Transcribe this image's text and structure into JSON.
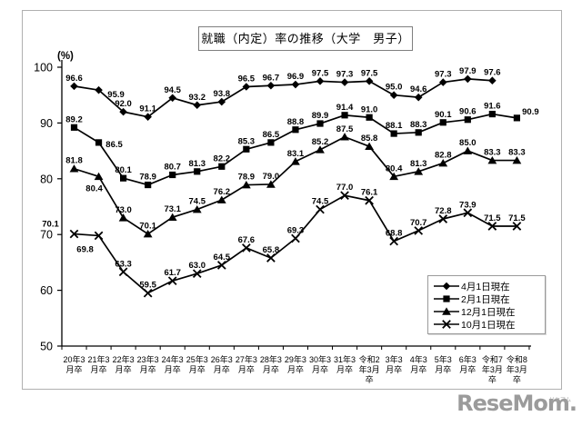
{
  "chart_data": {
    "type": "line",
    "title": "就職（内定）率の推移（大学　男子）",
    "y_unit": "(%)",
    "xlabel": "",
    "ylabel": "(%)",
    "ylim": [
      50,
      100
    ],
    "y_ticks": [
      100,
      90,
      80,
      70,
      60,
      50
    ],
    "grid": false,
    "legend_position": "inside-lower-right",
    "categories": [
      "20年3月卒",
      "21年3月卒",
      "22年3月卒",
      "23年3月卒",
      "24年3月卒",
      "25年3月卒",
      "26年3月卒",
      "27年3月卒",
      "28年3月卒",
      "29年3月卒",
      "30年3月卒",
      "31年3月卒",
      "令和2年3月卒",
      "3年3月卒",
      "4年3月卒",
      "5年3月卒",
      "6年3月卒",
      "令和7年3月卒",
      "令和8年3月卒"
    ],
    "category_label_lines": [
      [
        "20年3",
        "月卒"
      ],
      [
        "21年3",
        "月卒"
      ],
      [
        "22年3",
        "月卒"
      ],
      [
        "23年3",
        "月卒"
      ],
      [
        "24年3",
        "月卒"
      ],
      [
        "25年3",
        "月卒"
      ],
      [
        "26年3",
        "月卒"
      ],
      [
        "27年3",
        "月卒"
      ],
      [
        "28年3",
        "月卒"
      ],
      [
        "29年3",
        "月卒"
      ],
      [
        "30年3",
        "月卒"
      ],
      [
        "31年3",
        "月卒"
      ],
      [
        "令和2",
        "年3月",
        "卒"
      ],
      [
        "3年3",
        "月卒"
      ],
      [
        "4年3",
        "月卒"
      ],
      [
        "5年3",
        "月卒"
      ],
      [
        "6年3",
        "月卒"
      ],
      [
        "令和7",
        "年3月",
        "卒"
      ],
      [
        "令和8",
        "年3月",
        "卒"
      ]
    ],
    "series": [
      {
        "name": "4月1日現在",
        "marker": "diamond",
        "values": [
          96.6,
          95.9,
          92.0,
          91.1,
          94.5,
          93.2,
          93.8,
          96.5,
          96.7,
          96.9,
          97.5,
          97.3,
          97.5,
          95.0,
          94.6,
          97.3,
          97.9,
          97.6,
          null
        ]
      },
      {
        "name": "2月1日現在",
        "marker": "square",
        "values": [
          89.2,
          86.5,
          80.1,
          78.9,
          80.7,
          81.3,
          82.2,
          85.3,
          86.5,
          88.8,
          89.9,
          91.4,
          91.0,
          88.1,
          88.3,
          90.1,
          90.6,
          91.6,
          90.9
        ]
      },
      {
        "name": "12月1日現在",
        "marker": "triangle",
        "values": [
          81.8,
          80.4,
          73.0,
          70.1,
          73.1,
          74.5,
          76.2,
          78.9,
          79.0,
          83.1,
          85.2,
          87.5,
          85.8,
          80.4,
          81.3,
          82.8,
          85.0,
          83.3,
          83.3
        ]
      },
      {
        "name": "10月1日現在",
        "marker": "x",
        "values": [
          70.1,
          69.8,
          63.3,
          59.5,
          61.7,
          63.0,
          64.5,
          67.6,
          65.8,
          69.3,
          74.5,
          77.0,
          76.1,
          68.8,
          70.7,
          72.8,
          73.9,
          71.5,
          71.5
        ]
      }
    ]
  },
  "legend": {
    "items": [
      "4月1日現在",
      "2月1日現在",
      "12月1日現在",
      "10月1日現在"
    ]
  },
  "watermark": {
    "text": "ReseMom.",
    "ruby": "リセマム"
  },
  "colors": {
    "line": "#000000",
    "figure_border": "#b0b0b0",
    "title_border": "#7f7f7f",
    "legend_border": "#9a9a9a",
    "watermark": "#9b9b9b"
  }
}
